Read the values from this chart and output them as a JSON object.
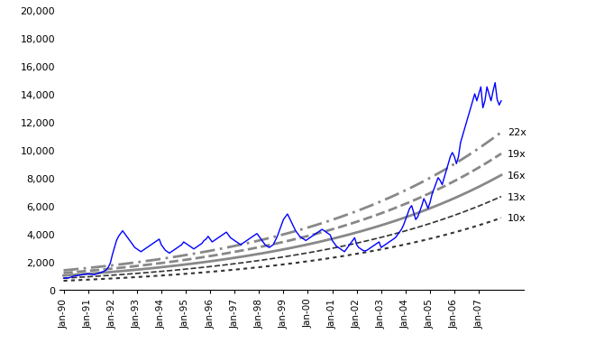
{
  "title": "",
  "ylabel": "",
  "xlabel": "",
  "ylim": [
    0,
    20000
  ],
  "yticks": [
    0,
    2000,
    4000,
    6000,
    8000,
    10000,
    12000,
    14000,
    16000,
    18000,
    20000
  ],
  "xtick_labels": [
    "Jan-90",
    "Jan-91",
    "Jan-92",
    "Jan-93",
    "Jan-94",
    "Jan-95",
    "Jan-96",
    "Jan-97",
    "Jan-98",
    "Jan-99",
    "Jan-00",
    "Jan-01",
    "Jan-02",
    "Jan-03",
    "Jan-04",
    "Jan-05",
    "Jan-06",
    "Jan-07"
  ],
  "pe_labels": [
    "22x",
    "19x",
    "16x",
    "13x",
    "10x"
  ],
  "pe_multipliers": [
    22,
    19,
    16,
    13,
    10
  ],
  "sensex_color": "#0000FF",
  "pe_gray_color": "#888888",
  "pe_black_color": "#000000",
  "background_color": "#ffffff",
  "eps_base": 62,
  "eps_growth_rate": 0.125,
  "num_years": 18,
  "num_months": 216,
  "sensex_data": [
    800,
    810,
    820,
    850,
    900,
    950,
    980,
    1000,
    1020,
    1050,
    1080,
    1100,
    1120,
    1100,
    1080,
    1050,
    1100,
    1150,
    1200,
    1250,
    1300,
    1400,
    1600,
    1900,
    2500,
    3000,
    3500,
    3800,
    4000,
    4200,
    4000,
    3800,
    3600,
    3400,
    3200,
    3000,
    2900,
    2800,
    2700,
    2800,
    2900,
    3000,
    3100,
    3200,
    3300,
    3400,
    3500,
    3600,
    3200,
    3000,
    2800,
    2700,
    2600,
    2700,
    2800,
    2900,
    3000,
    3100,
    3200,
    3400,
    3300,
    3200,
    3100,
    3000,
    2900,
    3000,
    3100,
    3200,
    3300,
    3500,
    3600,
    3800,
    3600,
    3400,
    3500,
    3600,
    3700,
    3800,
    3900,
    4000,
    4100,
    3900,
    3700,
    3600,
    3500,
    3400,
    3300,
    3200,
    3300,
    3400,
    3500,
    3600,
    3700,
    3800,
    3900,
    4000,
    3800,
    3600,
    3400,
    3200,
    3100,
    3000,
    3100,
    3200,
    3500,
    3800,
    4200,
    4600,
    5000,
    5200,
    5400,
    5100,
    4800,
    4500,
    4200,
    4000,
    3800,
    3700,
    3600,
    3500,
    3600,
    3700,
    3800,
    3900,
    4000,
    4100,
    4200,
    4300,
    4200,
    4100,
    4000,
    3900,
    3500,
    3300,
    3100,
    3000,
    2900,
    2800,
    2700,
    2900,
    3100,
    3300,
    3500,
    3700,
    3200,
    3000,
    2900,
    2800,
    2750,
    2800,
    2900,
    3000,
    3100,
    3200,
    3300,
    3400,
    3000,
    3100,
    3200,
    3300,
    3400,
    3500,
    3600,
    3700,
    3900,
    4100,
    4300,
    4600,
    5000,
    5400,
    5800,
    6000,
    5500,
    5000,
    5200,
    5600,
    6000,
    6500,
    6200,
    5800,
    6200,
    6800,
    7200,
    7600,
    8000,
    7800,
    7500,
    8000,
    8500,
    9000,
    9500,
    9800,
    9500,
    9000,
    9500,
    10500,
    11000,
    11500,
    12000,
    12500,
    13000,
    13500,
    14000,
    13500,
    14000,
    14500,
    13000,
    13500,
    14500,
    14000,
    13500,
    14200,
    14800,
    13600,
    13200,
    13500
  ],
  "styles": {
    "22": {
      "color": "#888888",
      "ls": "dashdot",
      "lw": 2.0
    },
    "19": {
      "color": "#888888",
      "ls": "dashed",
      "lw": 2.0
    },
    "16": {
      "color": "#888888",
      "ls": "solid",
      "lw": 2.0
    },
    "13": {
      "color": "#333333",
      "ls": "dashed",
      "lw": 1.2
    },
    "10": {
      "color": "#333333",
      "ls": "dotted",
      "lw": 1.5
    }
  }
}
